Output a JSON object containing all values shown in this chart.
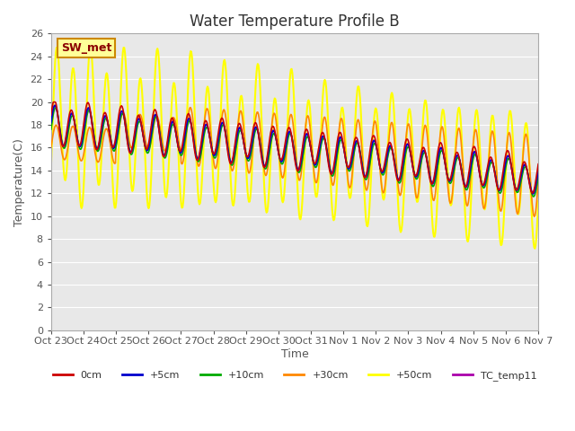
{
  "title": "Water Temperature Profile B",
  "xlabel": "Time",
  "ylabel": "Temperature(C)",
  "ylim": [
    0,
    26
  ],
  "yticks": [
    0,
    2,
    4,
    6,
    8,
    10,
    12,
    14,
    16,
    18,
    20,
    22,
    24,
    26
  ],
  "xtick_labels": [
    "Oct 23",
    "Oct 24",
    "Oct 25",
    "Oct 26",
    "Oct 27",
    "Oct 28",
    "Oct 29",
    "Oct 30",
    "Oct 31",
    "Nov 1",
    "Nov 2",
    "Nov 3",
    "Nov 4",
    "Nov 5",
    "Nov 6",
    "Nov 7"
  ],
  "bg_color": "#e8e8e8",
  "grid_color": "#ffffff",
  "series": {
    "0cm": {
      "color": "#cc0000",
      "linewidth": 1.2
    },
    "+5cm": {
      "color": "#0000cc",
      "linewidth": 1.2
    },
    "+10cm": {
      "color": "#00aa00",
      "linewidth": 1.2
    },
    "+30cm": {
      "color": "#ff8800",
      "linewidth": 1.2
    },
    "+50cm": {
      "color": "#ffff00",
      "linewidth": 1.5
    },
    "TC_temp11": {
      "color": "#aa00aa",
      "linewidth": 1.2
    }
  },
  "annotation_text": "SW_met",
  "annotation_color": "#8b0000",
  "annotation_bg": "#ffff99",
  "annotation_border": "#cc8800"
}
